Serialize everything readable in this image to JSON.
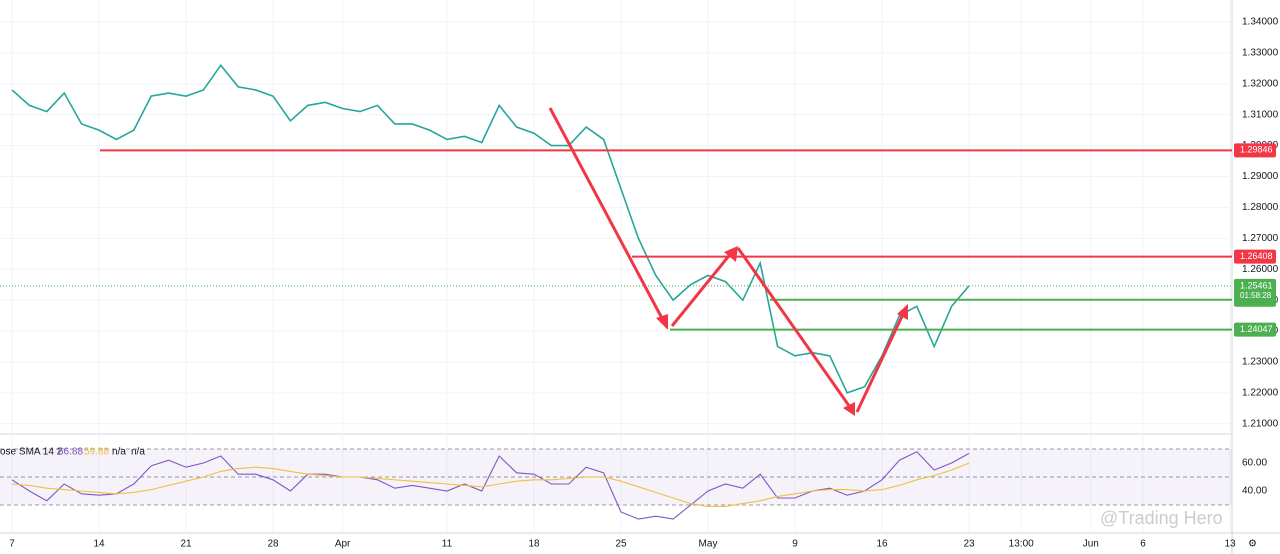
{
  "chart_data": [
    {
      "type": "line",
      "name": "price",
      "categories": [
        "7",
        null,
        null,
        null,
        null,
        "14",
        null,
        null,
        null,
        null,
        "21",
        null,
        null,
        null,
        null,
        "28",
        null,
        null,
        null,
        "Apr",
        null,
        null,
        null,
        null,
        null,
        "11",
        null,
        null,
        null,
        null,
        "18",
        null,
        null,
        null,
        null,
        "25",
        null,
        null,
        null,
        null,
        "May",
        null,
        null,
        null,
        null,
        "9",
        null,
        null,
        null,
        null,
        "16",
        null,
        null,
        null,
        null,
        "23",
        null,
        null,
        "13:00",
        null,
        null,
        null,
        "Jun",
        null,
        null,
        "6",
        null,
        null,
        null,
        null,
        "13"
      ],
      "series": [
        {
          "color": "#26a69a",
          "values": [
            1.318,
            1.313,
            1.311,
            1.317,
            1.307,
            1.305,
            1.302,
            1.305,
            1.316,
            1.317,
            1.316,
            1.318,
            1.326,
            1.319,
            1.318,
            1.316,
            1.308,
            1.313,
            1.314,
            1.312,
            1.311,
            1.313,
            1.307,
            1.307,
            1.305,
            1.302,
            1.303,
            1.301,
            1.313,
            1.306,
            1.304,
            1.3,
            1.3,
            1.306,
            1.302,
            1.286,
            1.27,
            1.258,
            1.25,
            1.255,
            1.258,
            1.256,
            1.25,
            1.262,
            1.235,
            1.232,
            1.233,
            1.232,
            1.22,
            1.222,
            1.232,
            1.245,
            1.248,
            1.235,
            1.248,
            1.25461,
            null,
            null,
            null,
            null,
            null,
            null,
            null,
            null,
            null,
            null,
            null,
            null,
            null,
            null,
            null
          ]
        }
      ],
      "ylim": [
        1.2067,
        1.3471
      ],
      "yticks": [
        {
          "value": 1.21,
          "label": "1.21000"
        },
        {
          "value": 1.22,
          "label": "1.22000"
        },
        {
          "value": 1.23,
          "label": "1.23000"
        },
        {
          "value": 1.24,
          "label": "1.24000"
        },
        {
          "value": 1.25,
          "label": "1.25000"
        },
        {
          "value": 1.26,
          "label": "1.26000"
        },
        {
          "value": 1.27,
          "label": "1.27000"
        },
        {
          "value": 1.28,
          "label": "1.28000"
        },
        {
          "value": 1.29,
          "label": "1.29000"
        },
        {
          "value": 1.3,
          "label": "1.30000"
        },
        {
          "value": 1.31,
          "label": "1.31000"
        },
        {
          "value": 1.32,
          "label": "1.32000"
        },
        {
          "value": 1.33,
          "label": "1.33000"
        },
        {
          "value": 1.34,
          "label": "1.34000"
        }
      ],
      "grid": true,
      "levels": [
        {
          "value": 1.29846,
          "color": "#f23645"
        },
        {
          "value": 1.26408,
          "color": "#f23645"
        },
        {
          "value": 1.25011,
          "color": "#4caf50"
        },
        {
          "value": 1.24047,
          "color": "#4caf50"
        }
      ],
      "current": {
        "value": 1.25461,
        "countdown": "01:58:28",
        "color": "#4caf50"
      },
      "watermark": "@Trading Hero"
    },
    {
      "type": "line",
      "name": "rsi",
      "legend": [
        "ose SMA 14 2",
        "66.88",
        "59.88",
        "n/a",
        "n/a"
      ],
      "series": [
        {
          "color": "#7e57c2",
          "values": [
            48,
            40,
            33,
            45,
            38,
            37,
            38,
            45,
            58,
            62,
            57,
            60,
            65,
            52,
            52,
            48,
            40,
            52,
            52,
            50,
            50,
            48,
            42,
            44,
            42,
            40,
            45,
            40,
            65,
            53,
            52,
            45,
            45,
            57,
            53,
            25,
            20,
            22,
            20,
            30,
            40,
            45,
            42,
            52,
            35,
            35,
            40,
            42,
            37,
            40,
            48,
            62,
            68,
            55,
            60,
            66.88,
            null,
            null,
            null,
            null,
            null,
            null,
            null,
            null,
            null,
            null,
            null,
            null,
            null,
            null,
            null
          ]
        },
        {
          "color": "#f0c040",
          "values": [
            45,
            44,
            42,
            41,
            40,
            39,
            38,
            39,
            41,
            44,
            47,
            50,
            54,
            56,
            57,
            56,
            54,
            52,
            51,
            50,
            50,
            49,
            48,
            47,
            46,
            45,
            44,
            43,
            45,
            47,
            48,
            48,
            49,
            50,
            50,
            47,
            43,
            39,
            35,
            31,
            29,
            29,
            31,
            33,
            36,
            38,
            40,
            41,
            41,
            40,
            41,
            44,
            48,
            51,
            55,
            59.88,
            null,
            null,
            null,
            null,
            null,
            null,
            null,
            null,
            null,
            null,
            null,
            null,
            null,
            null,
            null
          ]
        }
      ],
      "ylim": [
        10,
        75
      ],
      "yticks": [
        {
          "value": 60,
          "label": "60.00"
        },
        {
          "value": 40,
          "label": "40.00"
        }
      ],
      "levels": [
        70,
        50,
        30
      ]
    }
  ]
}
